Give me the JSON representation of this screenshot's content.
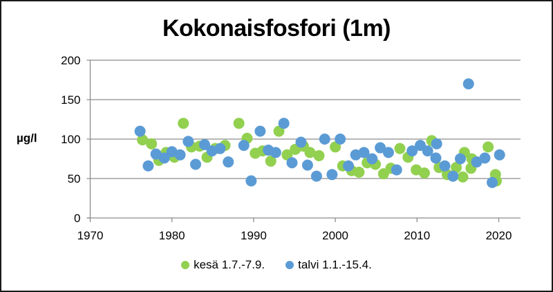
{
  "chart_data": {
    "type": "scatter",
    "title": "Kokonaisfosfori (1m)",
    "xlabel": "",
    "ylabel": "µg/l",
    "xlim": [
      1970,
      2022.7
    ],
    "ylim": [
      0,
      200
    ],
    "x_ticks": [
      1970,
      1980,
      1990,
      2000,
      2010,
      2020
    ],
    "y_ticks": [
      0,
      50,
      100,
      150,
      200
    ],
    "grid": {
      "horizontal": true,
      "vertical": false
    },
    "legend_position": "bottom",
    "series": [
      {
        "name": "kesä 1.7.-7.9.",
        "color": "#92D050",
        "points": [
          [
            1976.4,
            99
          ],
          [
            1977.5,
            94
          ],
          [
            1978.4,
            73
          ],
          [
            1979.3,
            83
          ],
          [
            1980.3,
            77
          ],
          [
            1981.4,
            120
          ],
          [
            1982.4,
            90
          ],
          [
            1983.4,
            91
          ],
          [
            1984.3,
            77
          ],
          [
            1985.3,
            88
          ],
          [
            1986.5,
            92
          ],
          [
            1988.2,
            120
          ],
          [
            1989.2,
            101
          ],
          [
            1990.2,
            82
          ],
          [
            1991.1,
            85
          ],
          [
            1992.1,
            72
          ],
          [
            1993.1,
            110
          ],
          [
            1994.1,
            80
          ],
          [
            1995.1,
            87
          ],
          [
            1996.1,
            91
          ],
          [
            1996.9,
            83
          ],
          [
            1998.0,
            79
          ],
          [
            2000.0,
            90
          ],
          [
            2000.9,
            66
          ],
          [
            2002.0,
            60
          ],
          [
            2002.9,
            58
          ],
          [
            2003.9,
            70
          ],
          [
            2004.9,
            68
          ],
          [
            2005.9,
            56
          ],
          [
            2006.8,
            63
          ],
          [
            2007.9,
            88
          ],
          [
            2008.9,
            77
          ],
          [
            2009.9,
            61
          ],
          [
            2010.9,
            57
          ],
          [
            2011.8,
            98
          ],
          [
            2012.7,
            64
          ],
          [
            2013.7,
            55
          ],
          [
            2014.8,
            64
          ],
          [
            2015.6,
            52
          ],
          [
            2015.8,
            83
          ],
          [
            2016.6,
            63
          ],
          [
            2016.7,
            75
          ],
          [
            2018.7,
            90
          ],
          [
            2019.6,
            55
          ],
          [
            2019.7,
            47
          ]
        ]
      },
      {
        "name": "talvi 1.1.-15.4.",
        "color": "#5B9BD5",
        "points": [
          [
            1976.1,
            110
          ],
          [
            1977.1,
            66
          ],
          [
            1978.05,
            81
          ],
          [
            1979.07,
            76
          ],
          [
            1980.0,
            84
          ],
          [
            1981.0,
            80
          ],
          [
            1982.0,
            97
          ],
          [
            1982.9,
            68
          ],
          [
            1984.0,
            93
          ],
          [
            1984.9,
            85
          ],
          [
            1985.9,
            88
          ],
          [
            1986.9,
            71
          ],
          [
            1988.8,
            92
          ],
          [
            1989.7,
            47
          ],
          [
            1990.8,
            110
          ],
          [
            1991.8,
            86
          ],
          [
            1992.7,
            83
          ],
          [
            1993.7,
            120
          ],
          [
            1994.7,
            70
          ],
          [
            1995.8,
            96
          ],
          [
            1996.6,
            67
          ],
          [
            1997.7,
            53
          ],
          [
            1998.7,
            100
          ],
          [
            1999.6,
            55
          ],
          [
            2000.6,
            100
          ],
          [
            2001.6,
            66
          ],
          [
            2002.5,
            80
          ],
          [
            2003.5,
            83
          ],
          [
            2004.5,
            75
          ],
          [
            2005.5,
            89
          ],
          [
            2006.5,
            83
          ],
          [
            2007.5,
            61
          ],
          [
            2009.4,
            85
          ],
          [
            2010.4,
            92
          ],
          [
            2011.3,
            85
          ],
          [
            2012.3,
            76
          ],
          [
            2012.4,
            94
          ],
          [
            2013.4,
            66
          ],
          [
            2014.4,
            53
          ],
          [
            2015.3,
            75
          ],
          [
            2016.3,
            170
          ],
          [
            2017.3,
            71
          ],
          [
            2018.3,
            76
          ],
          [
            2019.2,
            45
          ],
          [
            2020.1,
            80
          ]
        ]
      }
    ]
  },
  "legend": {
    "items": [
      {
        "label": "kesä 1.7.-7.9.",
        "color": "#92D050"
      },
      {
        "label": "talvi 1.1.-15.4.",
        "color": "#5B9BD5"
      }
    ]
  }
}
